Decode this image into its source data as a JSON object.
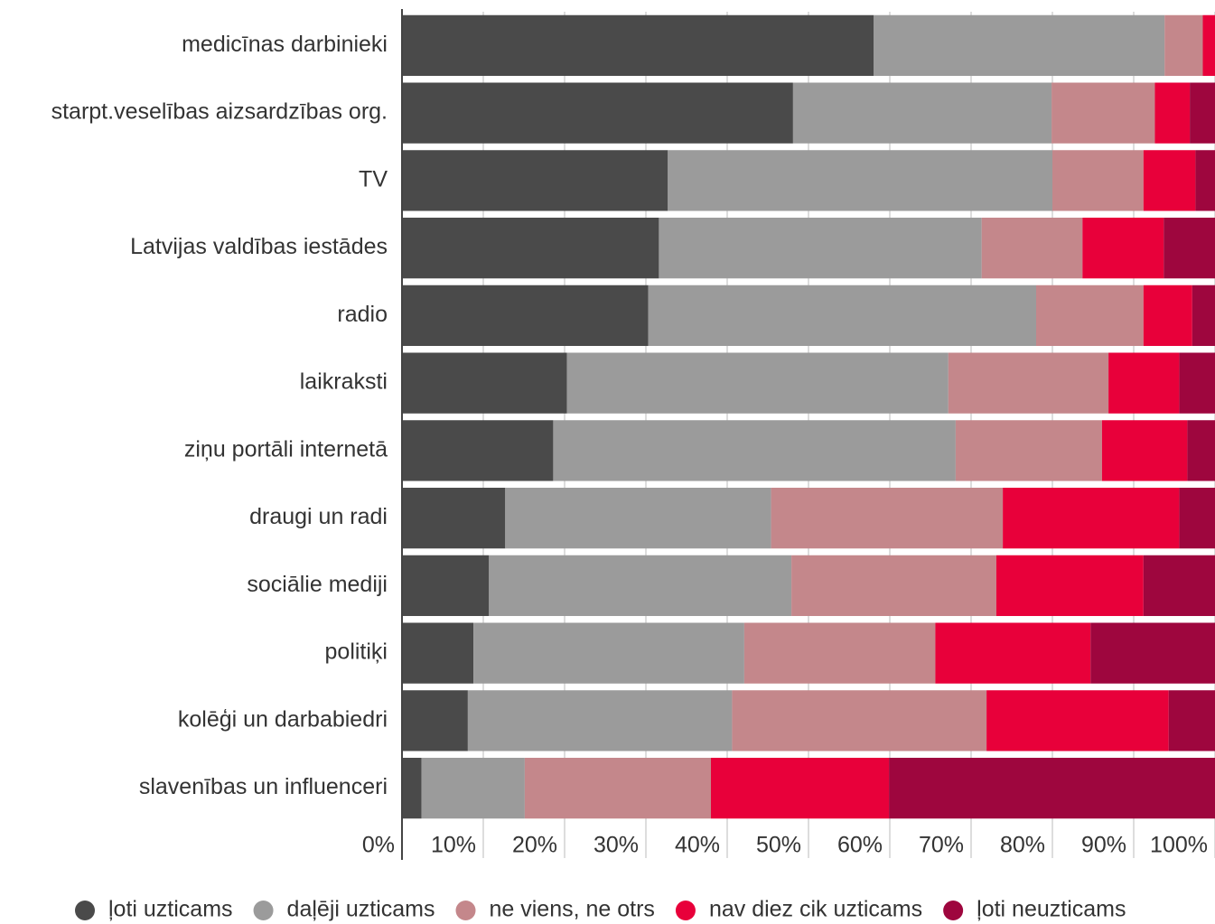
{
  "chart_data": {
    "type": "stacked_barh",
    "categories": [
      "medicīnas darbinieki",
      "starpt.veselības aizsardzības org.",
      "TV",
      "Latvijas valdības iestādes",
      "radio",
      "laikraksti",
      "ziņu portāli internetā",
      "draugi un radi",
      "sociālie mediji",
      "politiķi",
      "kolēģi un darbabiedri",
      "slavenības un influenceri"
    ],
    "series": [
      {
        "name": "ļoti uzticams",
        "color": "#4a4a4a",
        "values": [
          58,
          48.1,
          32.7,
          31.6,
          30.3,
          20.3,
          18.6,
          12.7,
          10.7,
          8.8,
          8.1,
          2.4
        ]
      },
      {
        "name": "daļēji uzticams",
        "color": "#9b9b9b",
        "values": [
          35.8,
          31.8,
          47.3,
          39.7,
          47.7,
          46.9,
          49.5,
          32.7,
          37.2,
          33.3,
          32.5,
          12.7
        ]
      },
      {
        "name": "ne viens, ne otrs",
        "color": "#c4878b",
        "values": [
          4.7,
          12.7,
          11.2,
          12.4,
          13.2,
          19.7,
          18,
          28.5,
          25.2,
          23.5,
          31.3,
          22.9
        ]
      },
      {
        "name": "nav diez cik uzticams",
        "color": "#e8003a",
        "values": [
          1.5,
          4.3,
          6.4,
          10,
          6,
          8.7,
          10.5,
          21.7,
          18.1,
          19.1,
          22.4,
          21.9
        ]
      },
      {
        "name": "ļoti neuzticams",
        "color": "#9e063e",
        "values": [
          0,
          3.1,
          2.4,
          6.3,
          2.8,
          4.4,
          3.4,
          4.4,
          8.8,
          15.3,
          5.7,
          40.1
        ]
      }
    ],
    "xlim": [
      0,
      100
    ],
    "xticks": [
      {
        "value": 0,
        "label": "0%"
      },
      {
        "value": 10,
        "label": "10%"
      },
      {
        "value": 20,
        "label": "20%"
      },
      {
        "value": 30,
        "label": "30%"
      },
      {
        "value": 40,
        "label": "40%"
      },
      {
        "value": 50,
        "label": "50%"
      },
      {
        "value": 60,
        "label": "60%"
      },
      {
        "value": 70,
        "label": "70%"
      },
      {
        "value": 80,
        "label": "80%"
      },
      {
        "value": 90,
        "label": "90%"
      },
      {
        "value": 100,
        "label": "100%"
      }
    ],
    "grid": true,
    "legend": "bottom"
  }
}
